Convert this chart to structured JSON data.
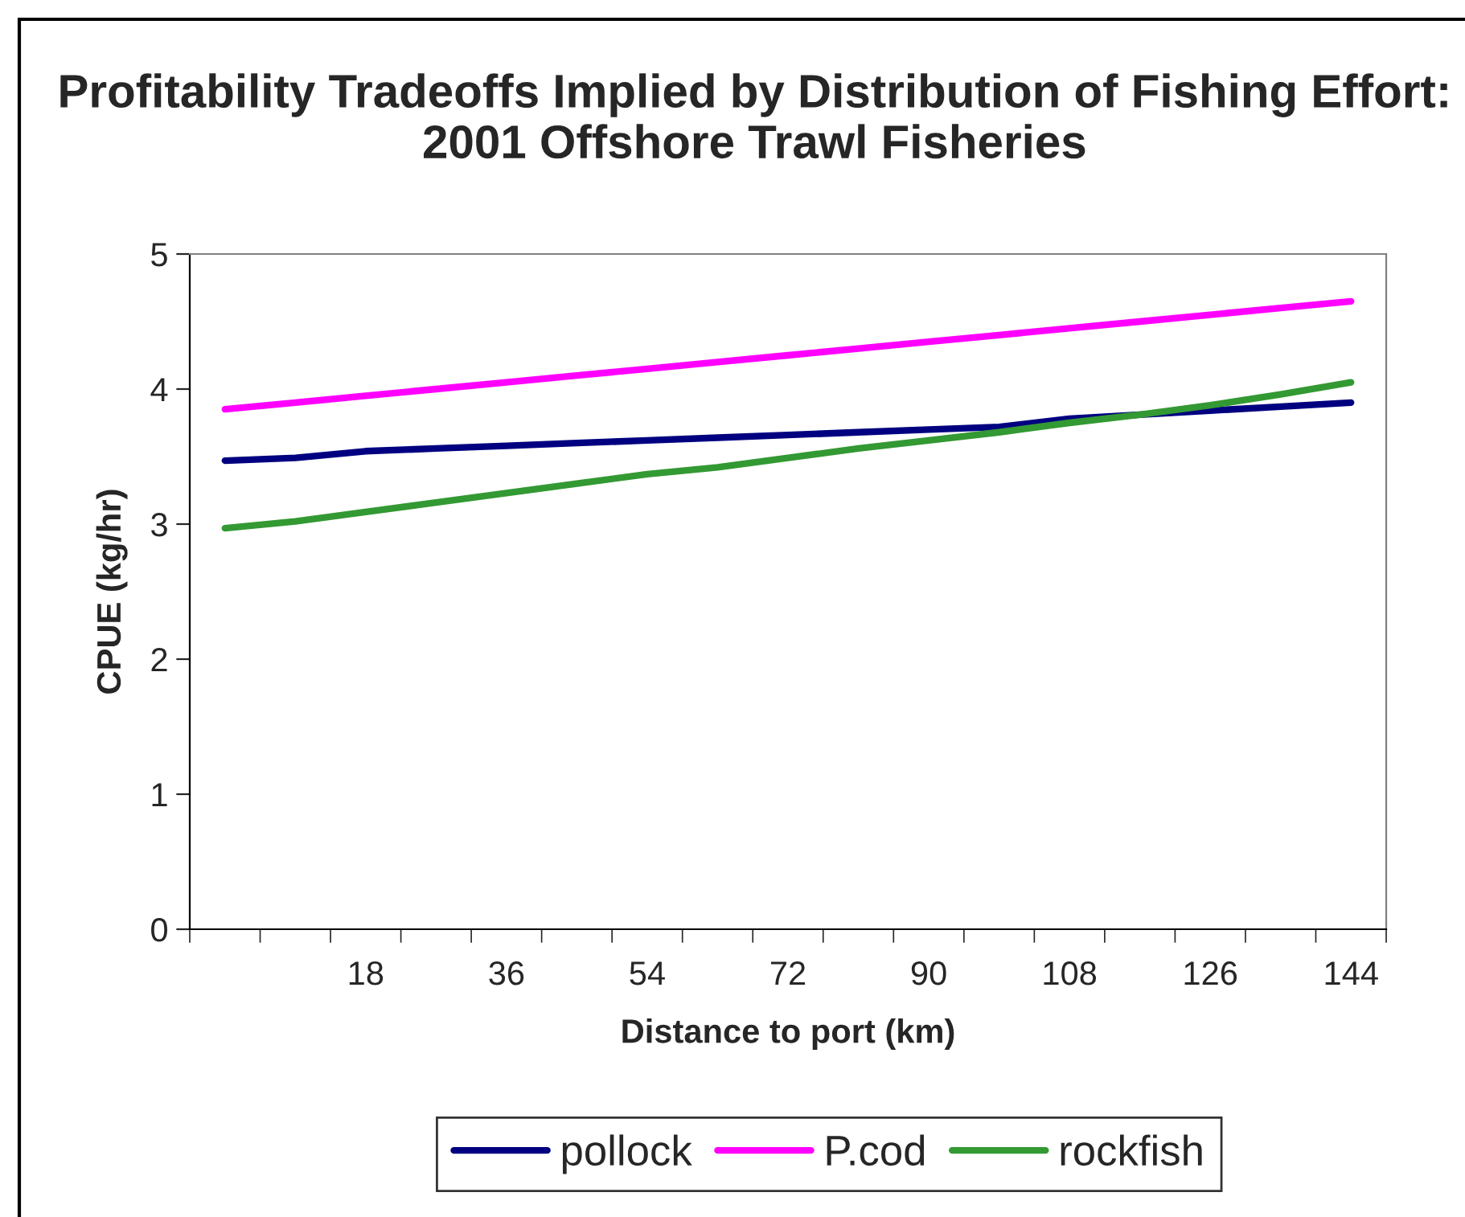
{
  "chart_data": {
    "type": "line",
    "title": "Profitability Tradeoffs Implied by Distribution of Fishing Effort: 2001 Offshore Trawl Fisheries",
    "xlabel": "Distance to port (km)",
    "ylabel": "CPUE (kg/hr)",
    "categories": [
      null,
      null,
      "18",
      null,
      "36",
      null,
      "54",
      null,
      "72",
      null,
      "90",
      null,
      "108",
      null,
      "126",
      null,
      "144"
    ],
    "series": [
      {
        "name": "pollock",
        "color": "#000080",
        "values": [
          3.47,
          3.49,
          3.54,
          3.56,
          3.58,
          3.6,
          3.62,
          3.64,
          3.66,
          3.68,
          3.7,
          3.72,
          3.78,
          3.81,
          3.84,
          3.87,
          3.9
        ]
      },
      {
        "name": "P.cod",
        "color": "#ff00ff",
        "values": [
          3.85,
          3.9,
          3.95,
          4.0,
          4.05,
          4.1,
          4.15,
          4.2,
          4.25,
          4.3,
          4.35,
          4.4,
          4.45,
          4.5,
          4.55,
          4.6,
          4.65
        ]
      },
      {
        "name": "rockfish",
        "color": "#339933",
        "values": [
          2.97,
          3.02,
          3.09,
          3.16,
          3.23,
          3.3,
          3.37,
          3.42,
          3.49,
          3.56,
          3.62,
          3.68,
          3.75,
          3.81,
          3.88,
          3.96,
          4.05
        ]
      }
    ],
    "ylim": [
      0,
      5
    ],
    "yticks": [
      0,
      1,
      2,
      3,
      4,
      5
    ],
    "grid": false,
    "legend": "bottom",
    "marker": "none",
    "line_style": "solid"
  }
}
